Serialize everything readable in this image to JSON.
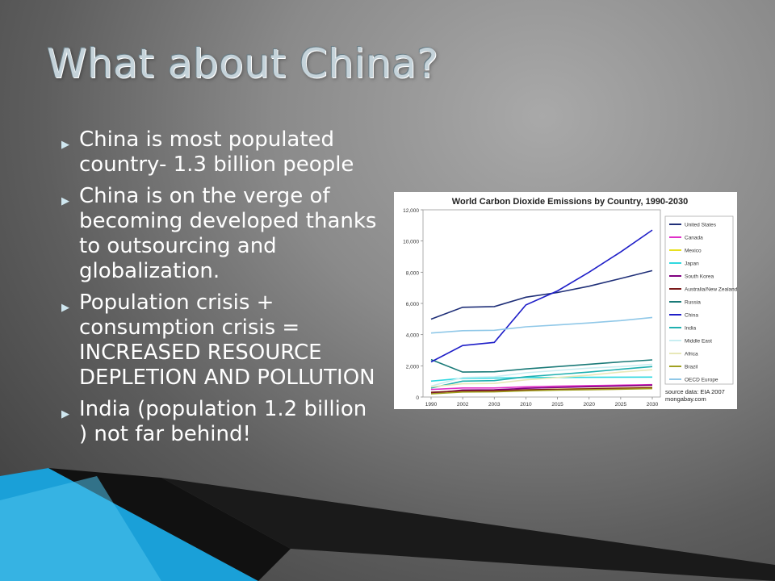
{
  "slide": {
    "title": "What about China?",
    "bullets": [
      "China is most populated country- 1.3 billion people",
      "China is on the verge of becoming developed thanks to outsourcing and globalization.",
      "Population crisis + consumption crisis = INCREASED RESOURCE DEPLETION AND POLLUTION",
      "India (population 1.2 billion ) not far behind!"
    ],
    "bullet_icon": "triangle-right-icon"
  },
  "chart_data": {
    "type": "line",
    "title": "World Carbon Dioxide Emissions by Country, 1990-2030",
    "source": "source data: EIA 2007",
    "site": "mongabay.com",
    "x": [
      "1990",
      "2002",
      "2003",
      "2010",
      "2015",
      "2020",
      "2025",
      "2030"
    ],
    "ylim": [
      0,
      12000
    ],
    "yticks": [
      "0",
      "2,000",
      "4,000",
      "6,000",
      "8,000",
      "10,000",
      "12,000"
    ],
    "legend_position": "right",
    "series": [
      {
        "name": "United States",
        "color": "#1f2f78",
        "values": [
          4990,
          5750,
          5800,
          6400,
          6700,
          7100,
          7600,
          8100
        ]
      },
      {
        "name": "Canada",
        "color": "#e030c8",
        "values": [
          480,
          580,
          580,
          650,
          700,
          730,
          760,
          790
        ]
      },
      {
        "name": "Mexico",
        "color": "#e8e020",
        "values": [
          300,
          380,
          390,
          450,
          500,
          540,
          580,
          620
        ]
      },
      {
        "name": "Japan",
        "color": "#30d8e0",
        "values": [
          1020,
          1200,
          1210,
          1250,
          1250,
          1260,
          1270,
          1280
        ]
      },
      {
        "name": "South Korea",
        "color": "#800080",
        "values": [
          240,
          450,
          460,
          560,
          610,
          660,
          710,
          760
        ]
      },
      {
        "name": "Australia/New Zealand",
        "color": "#7a1a1a",
        "values": [
          300,
          400,
          410,
          460,
          490,
          520,
          560,
          590
        ]
      },
      {
        "name": "Russia",
        "color": "#1a7a78",
        "values": [
          2400,
          1600,
          1620,
          1800,
          1950,
          2100,
          2250,
          2380
        ]
      },
      {
        "name": "China",
        "color": "#1f1fc8",
        "values": [
          2250,
          3300,
          3500,
          5900,
          6800,
          8000,
          9300,
          10700
        ]
      },
      {
        "name": "India",
        "color": "#20b0b0",
        "values": [
          580,
          1020,
          1050,
          1300,
          1450,
          1600,
          1780,
          1950
        ]
      },
      {
        "name": "Middle East",
        "color": "#c8eef2",
        "values": [
          700,
          1250,
          1300,
          1550,
          1700,
          1850,
          1950,
          2100
        ]
      },
      {
        "name": "Africa",
        "color": "#e8e8b8",
        "values": [
          650,
          850,
          870,
          1100,
          1250,
          1400,
          1600,
          1750
        ]
      },
      {
        "name": "Brazil",
        "color": "#a0a020",
        "values": [
          200,
          320,
          330,
          400,
          440,
          470,
          500,
          540
        ]
      },
      {
        "name": "OECD Europe",
        "color": "#90c8e8",
        "values": [
          4100,
          4250,
          4280,
          4500,
          4620,
          4750,
          4900,
          5100
        ]
      }
    ]
  }
}
